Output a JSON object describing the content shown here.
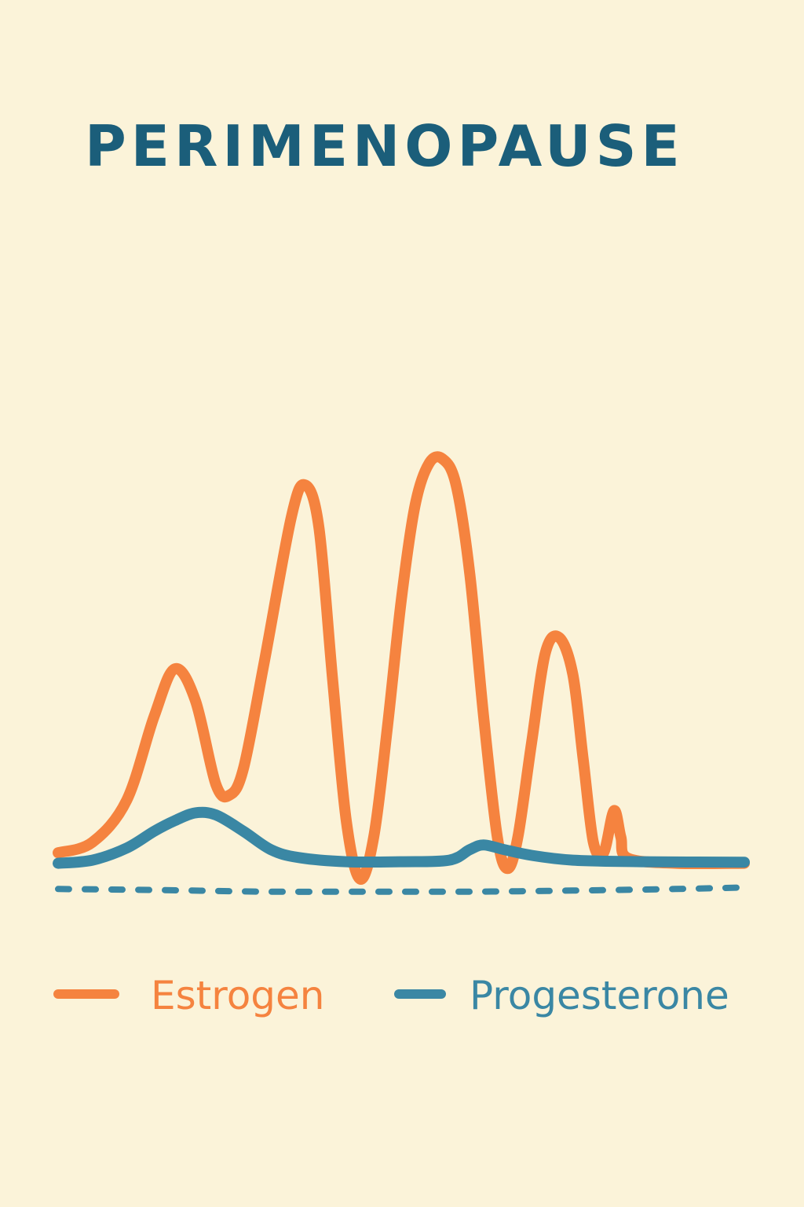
{
  "title": "PERIMENOPAUSE",
  "colors": {
    "background": "#fbf3d9",
    "title": "#1b5e7a",
    "estrogen": "#f5833f",
    "progesterone": "#3a87a4"
  },
  "chart_data": {
    "type": "line",
    "title": "PERIMENOPAUSE",
    "xlabel": "",
    "ylabel": "",
    "grid": false,
    "legend_position": "bottom",
    "axes_visible": false,
    "xlim": [
      0,
      100
    ],
    "ylim": [
      -5,
      100
    ],
    "series": [
      {
        "name": "Estrogen",
        "color": "#f5833f",
        "style": "solid",
        "points": [
          [
            0,
            2
          ],
          [
            5,
            4
          ],
          [
            10,
            12
          ],
          [
            14,
            28
          ],
          [
            17,
            37
          ],
          [
            20,
            31
          ],
          [
            23,
            15
          ],
          [
            25,
            13
          ],
          [
            27,
            18
          ],
          [
            30,
            38
          ],
          [
            34,
            66
          ],
          [
            36,
            72
          ],
          [
            38,
            64
          ],
          [
            40,
            35
          ],
          [
            42,
            8
          ],
          [
            44,
            -3
          ],
          [
            46,
            5
          ],
          [
            48,
            26
          ],
          [
            50,
            50
          ],
          [
            52,
            68
          ],
          [
            54,
            76
          ],
          [
            56,
            77
          ],
          [
            58,
            72
          ],
          [
            60,
            55
          ],
          [
            62,
            28
          ],
          [
            64,
            5
          ],
          [
            65.5,
            -1
          ],
          [
            67,
            5
          ],
          [
            69,
            23
          ],
          [
            71,
            40
          ],
          [
            73,
            43
          ],
          [
            75,
            36
          ],
          [
            76.5,
            20
          ],
          [
            78,
            4
          ],
          [
            79.5,
            2
          ],
          [
            81,
            10
          ],
          [
            82,
            5
          ],
          [
            83,
            1
          ],
          [
            90,
            0
          ],
          [
            100,
            0
          ]
        ]
      },
      {
        "name": "Progesterone",
        "color": "#3a87a4",
        "style": "solid",
        "points": [
          [
            0,
            0
          ],
          [
            5,
            0.6
          ],
          [
            10,
            2.9
          ],
          [
            14,
            6.1
          ],
          [
            17,
            8.1
          ],
          [
            20,
            9.6
          ],
          [
            23,
            9.2
          ],
          [
            27,
            6.1
          ],
          [
            31,
            2.6
          ],
          [
            35,
            1.1
          ],
          [
            42,
            0.3
          ],
          [
            50,
            0.3
          ],
          [
            57,
            0.6
          ],
          [
            60,
            2.6
          ],
          [
            62,
            3.5
          ],
          [
            65,
            2.6
          ],
          [
            69,
            1.5
          ],
          [
            75,
            0.6
          ],
          [
            85,
            0.3
          ],
          [
            100,
            0.2
          ]
        ]
      },
      {
        "color": "#3a87a4",
        "style": "dashed",
        "points": [
          [
            0,
            -4.9
          ],
          [
            15,
            -5.1
          ],
          [
            30,
            -5.4
          ],
          [
            45,
            -5.4
          ],
          [
            60,
            -5.4
          ],
          [
            75,
            -5.2
          ],
          [
            90,
            -4.9
          ],
          [
            100,
            -4.6
          ]
        ]
      }
    ]
  },
  "legend": {
    "items": [
      {
        "label": "Estrogen",
        "color": "#f5833f"
      },
      {
        "label": "Progesterone",
        "color": "#3a87a4"
      }
    ]
  }
}
